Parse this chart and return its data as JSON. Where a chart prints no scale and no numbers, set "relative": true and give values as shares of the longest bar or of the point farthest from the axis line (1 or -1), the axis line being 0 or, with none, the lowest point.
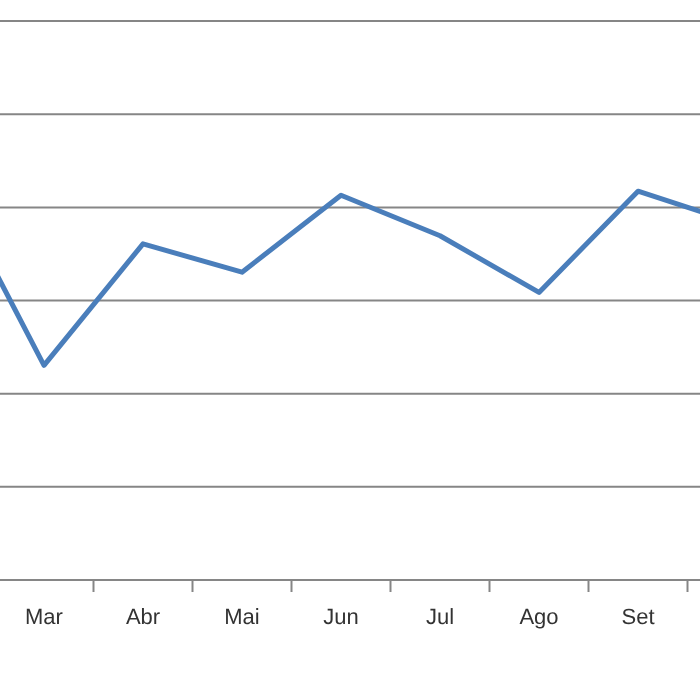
{
  "chart_data": {
    "type": "line",
    "relative": true,
    "ref_lines": [
      {
        "axis": "y",
        "value": 0.23,
        "color": "#868686"
      },
      {
        "axis": "y",
        "value": 0.46,
        "color": "#868686"
      },
      {
        "axis": "y",
        "value": 0.69,
        "color": "#868686"
      },
      {
        "axis": "y",
        "value": 0.92,
        "color": "#868686"
      },
      {
        "axis": "y",
        "value": 1.15,
        "color": "#868686"
      },
      {
        "axis": "y",
        "value": 1.38,
        "color": "#868686"
      }
    ],
    "marker": "none",
    "line_style": "solid",
    "categories": [
      null,
      "Mar",
      "Abr",
      "Mai",
      "Jun",
      "Jul",
      "Ago",
      "Set",
      null
    ],
    "series": [
      {
        "color": "#4a7ebb",
        "values": [
          1.0,
          0.53,
          0.83,
          0.76,
          0.95,
          0.85,
          0.71,
          0.96,
          0.88
        ]
      }
    ]
  }
}
